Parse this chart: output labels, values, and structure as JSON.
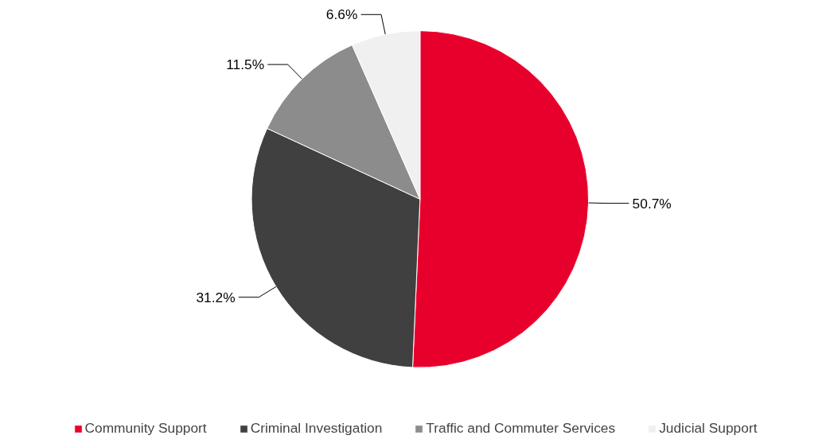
{
  "chart_data": {
    "type": "pie",
    "categories": [
      "Community Support",
      "Criminal Investigation",
      "Traffic and Commuter Services",
      "Judicial Support"
    ],
    "values": [
      50.7,
      31.2,
      11.5,
      6.6
    ],
    "colors": [
      "#e8002d",
      "#404040",
      "#8c8c8c",
      "#f0f0f0"
    ],
    "value_labels": [
      "50.7%",
      "31.2%",
      "11.5%",
      "6.6%"
    ],
    "legend": "bottom"
  }
}
